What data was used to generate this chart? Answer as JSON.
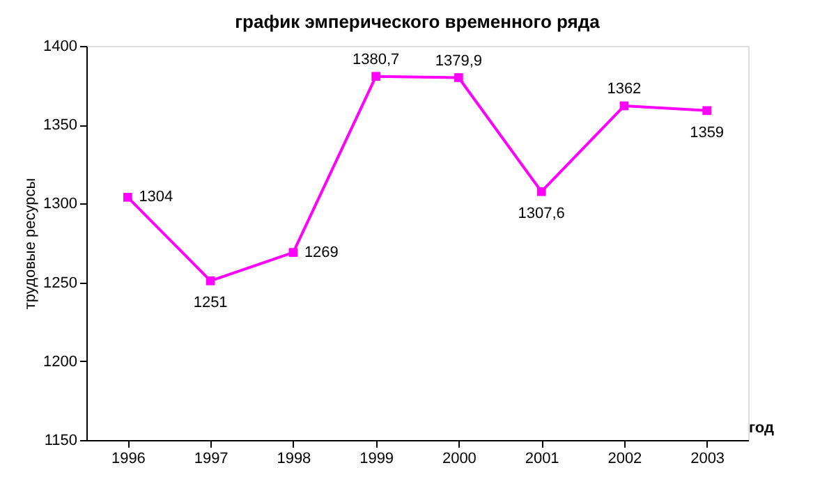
{
  "chart_data": {
    "type": "line",
    "title": "график эмперического временного ряда",
    "xlabel": "год",
    "ylabel": "трудовые ресурсы",
    "categories": [
      "1996",
      "1997",
      "1998",
      "1999",
      "2000",
      "2001",
      "2002",
      "2003"
    ],
    "series": [
      {
        "color": "#ff00ff",
        "values": [
          1304,
          1251,
          1269,
          1380.7,
          1379.9,
          1307.6,
          1362,
          1359
        ],
        "value_labels": [
          "1304",
          "1251",
          "1269",
          "1380,7",
          "1379,9",
          "1307,6",
          "1362",
          "1359"
        ]
      }
    ],
    "ylim": [
      1150,
      1400
    ],
    "yticks": [
      1150,
      1200,
      1250,
      1300,
      1350,
      1400
    ],
    "grid": false,
    "marker": "square",
    "line_style": "solid"
  }
}
